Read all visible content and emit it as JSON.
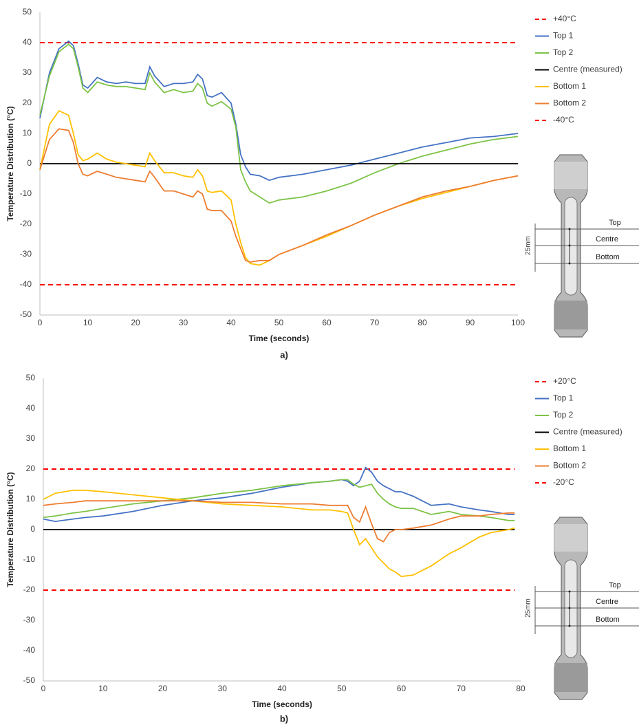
{
  "chart_data": [
    {
      "type": "line",
      "caption": "a)",
      "x_label": "Time (seconds)",
      "y_label": "Temperature Distribution (°C)",
      "xlim": [
        0,
        100
      ],
      "ylim": [
        -50,
        50
      ],
      "xticks": [
        0,
        10,
        20,
        30,
        40,
        50,
        60,
        70,
        80,
        90,
        100
      ],
      "yticks": [
        -50,
        -40,
        -30,
        -20,
        -10,
        0,
        10,
        20,
        30,
        40,
        50
      ],
      "grid": false,
      "x": [
        0,
        2,
        4,
        6,
        7,
        8,
        9,
        10,
        12,
        14,
        16,
        18,
        20,
        22,
        23,
        24,
        26,
        28,
        30,
        32,
        33,
        34,
        35,
        36,
        38,
        40,
        41,
        42,
        43,
        44,
        46,
        48,
        50,
        55,
        60,
        65,
        70,
        75,
        80,
        85,
        90,
        95,
        100
      ],
      "series": [
        {
          "name": "+40°C",
          "color": "#ff0000",
          "dashed": true,
          "x": [
            0,
            100
          ],
          "values": [
            40,
            40
          ]
        },
        {
          "name": "Top 1",
          "color": "#4472c4",
          "values": [
            15,
            30,
            38,
            40.5,
            39,
            33,
            26,
            25,
            28.5,
            27,
            26.5,
            27,
            26.5,
            26.5,
            32,
            29,
            25.5,
            26.5,
            26.5,
            27,
            29.5,
            28,
            22.5,
            22,
            23.5,
            20,
            13,
            3,
            -1,
            -3.5,
            -4,
            -5.5,
            -4.5,
            -3.5,
            -2,
            -0.5,
            1.5,
            3.5,
            5.5,
            7,
            8.5,
            9,
            10
          ]
        },
        {
          "name": "Top 2",
          "color": "#7dc346",
          "values": [
            16,
            29,
            37,
            39.5,
            38,
            32,
            25,
            23.5,
            27,
            26,
            25.5,
            25.5,
            25,
            24.5,
            30,
            27,
            23.5,
            24.5,
            23.5,
            24,
            26.5,
            25,
            20,
            19,
            20.5,
            18,
            12,
            -2,
            -6,
            -9,
            -11,
            -13,
            -12,
            -11,
            -9,
            -6.5,
            -3,
            0,
            2.5,
            4.5,
            6.5,
            8,
            9
          ]
        },
        {
          "name": "Centre (measured)",
          "color": "#000000",
          "values": [
            0,
            0,
            0,
            0,
            0,
            0,
            0,
            0,
            0,
            0,
            0,
            0,
            0,
            0,
            0,
            0,
            0,
            0,
            0,
            0,
            0,
            0,
            0,
            0,
            0,
            0,
            0,
            0,
            0,
            0,
            0,
            0,
            0,
            0,
            0,
            0,
            0,
            0,
            0,
            0,
            0,
            0,
            0
          ]
        },
        {
          "name": "Bottom 1",
          "color": "#ffc000",
          "values": [
            -2,
            13,
            17.5,
            16,
            10,
            3,
            1,
            1.5,
            3.5,
            1.5,
            0.5,
            0,
            -0.5,
            -1,
            3.5,
            1,
            -3,
            -3,
            -4,
            -4.5,
            -2,
            -4,
            -9,
            -9.5,
            -9,
            -12,
            -20,
            -26,
            -31,
            -33,
            -33.5,
            -32,
            -30,
            -27,
            -24,
            -20.5,
            -17,
            -14,
            -11.5,
            -9.5,
            -7.5,
            -5.5,
            -4
          ]
        },
        {
          "name": "Bottom 2",
          "color": "#ed7d31",
          "values": [
            -2,
            8,
            11.5,
            11,
            7,
            0,
            -3.5,
            -4,
            -2.5,
            -3.5,
            -4.5,
            -5,
            -5.5,
            -6,
            -2.5,
            -4.5,
            -9,
            -9,
            -10,
            -11,
            -9,
            -10,
            -15,
            -15.5,
            -15.5,
            -19,
            -24,
            -28,
            -32,
            -32.5,
            -32,
            -32,
            -30,
            -27,
            -23.5,
            -20.5,
            -17,
            -14,
            -11,
            -9,
            -7.5,
            -5.5,
            -4
          ]
        },
        {
          "name": "-40°C",
          "color": "#ff0000",
          "dashed": true,
          "x": [
            0,
            100
          ],
          "values": [
            -40,
            -40
          ]
        }
      ],
      "inset_labels": {
        "top": "Top",
        "centre": "Centre",
        "bottom": "Bottom",
        "length": "25mm"
      }
    },
    {
      "type": "line",
      "caption": "b)",
      "x_label": "Time (seconds)",
      "y_label": "Temperature Distribution (°C)",
      "xlim": [
        0,
        80
      ],
      "ylim": [
        -50,
        50
      ],
      "xticks": [
        0,
        10,
        20,
        30,
        40,
        50,
        60,
        70,
        80
      ],
      "yticks": [
        -50,
        -40,
        -30,
        -20,
        -10,
        0,
        10,
        20,
        30,
        40,
        50
      ],
      "grid": false,
      "x": [
        0,
        2,
        5,
        7,
        10,
        15,
        20,
        25,
        30,
        35,
        40,
        45,
        48,
        50,
        51,
        52,
        53,
        54,
        55,
        56,
        57,
        58,
        59,
        60,
        62,
        65,
        68,
        70,
        73,
        75,
        78,
        79
      ],
      "series": [
        {
          "name": "+20°C",
          "color": "#ff0000",
          "dashed": true,
          "x": [
            0,
            79
          ],
          "values": [
            20,
            20
          ]
        },
        {
          "name": "Top 1",
          "color": "#4472c4",
          "values": [
            3.5,
            2.7,
            3.5,
            4,
            4.5,
            6,
            8,
            9.5,
            10.5,
            12,
            14,
            15.5,
            16,
            16.5,
            16,
            14.5,
            16,
            20.5,
            19,
            16,
            14.5,
            13.5,
            12.5,
            12.5,
            11,
            8,
            8.5,
            7.5,
            6.5,
            6,
            5,
            5
          ]
        },
        {
          "name": "Top 2",
          "color": "#7dc346",
          "values": [
            4,
            4.5,
            5.5,
            6,
            7,
            8.5,
            9.5,
            10.5,
            12,
            13,
            14.5,
            15.5,
            16,
            16.5,
            16.5,
            15,
            14,
            14.5,
            15,
            12,
            10,
            8.5,
            7.5,
            7,
            7,
            5,
            6,
            5,
            4.5,
            4,
            3,
            3
          ]
        },
        {
          "name": "Centre (measured)",
          "color": "#000000",
          "values": [
            0,
            0,
            0,
            0,
            0,
            0,
            0,
            0,
            0,
            0,
            0,
            0,
            0,
            0,
            0,
            0,
            0,
            0,
            0,
            0,
            0,
            0,
            0,
            0,
            0,
            0,
            0,
            0,
            0,
            0,
            0,
            0
          ]
        },
        {
          "name": "Bottom 1",
          "color": "#ffc000",
          "values": [
            10,
            12,
            13,
            13,
            12.5,
            11.5,
            10.5,
            9.5,
            8.5,
            8,
            7.5,
            6.5,
            6.5,
            6,
            5.5,
            0,
            -5,
            -3,
            -6,
            -9,
            -11,
            -13,
            -14,
            -15.5,
            -15,
            -12,
            -8,
            -6,
            -2.5,
            -1,
            0,
            0.5
          ]
        },
        {
          "name": "Bottom 2",
          "color": "#ed7d31",
          "values": [
            8,
            8.5,
            9,
            9.5,
            9.5,
            9.5,
            9.5,
            9.5,
            9,
            9,
            8.5,
            8.5,
            8,
            8,
            8,
            4,
            2.5,
            7.5,
            2,
            -3,
            -4,
            -1,
            0,
            0,
            0.5,
            1.5,
            3.5,
            4.5,
            4.5,
            5,
            5.5,
            5.5
          ]
        },
        {
          "name": "-20°C",
          "color": "#ff0000",
          "dashed": true,
          "x": [
            0,
            79
          ],
          "values": [
            -20,
            -20
          ]
        }
      ],
      "inset_labels": {
        "top": "Top",
        "centre": "Centre",
        "bottom": "Bottom",
        "length": "25mm"
      }
    }
  ]
}
